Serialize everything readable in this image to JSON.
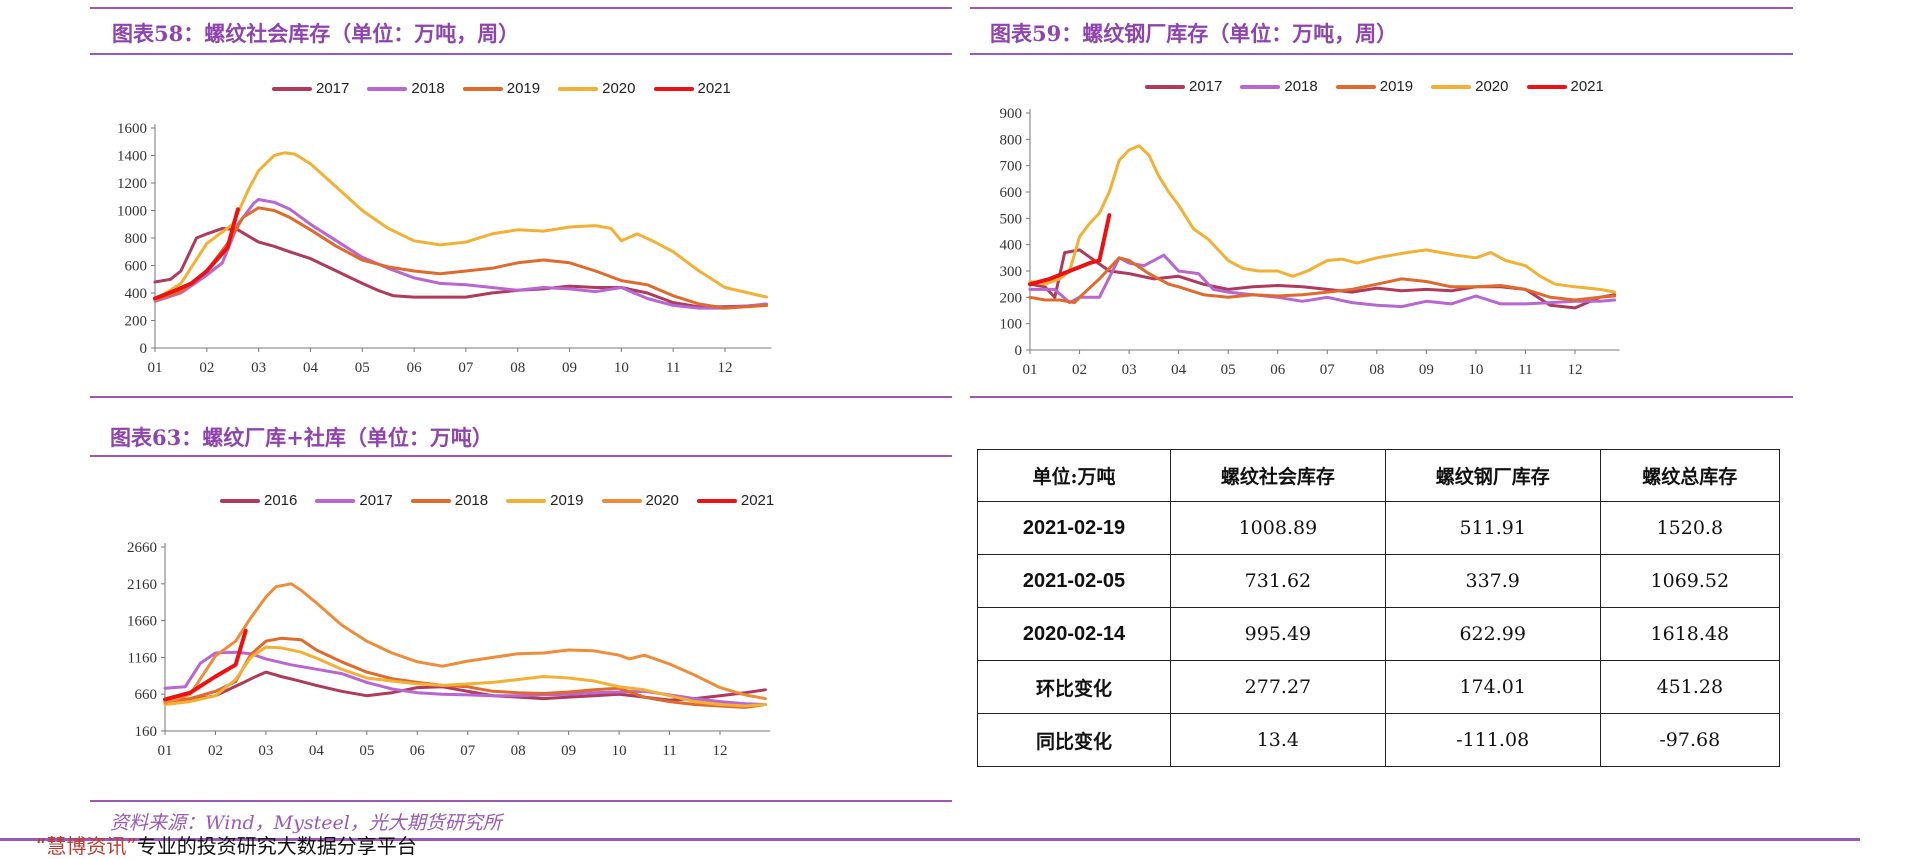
{
  "chart_data": [
    {
      "type": "line",
      "title": "图表58：螺纹社会库存（单位：万吨，周）",
      "xlabel": "",
      "ylabel": "",
      "categories": [
        "01",
        "02",
        "03",
        "04",
        "05",
        "06",
        "07",
        "08",
        "09",
        "10",
        "11",
        "12"
      ],
      "ylim": [
        0,
        1600
      ],
      "yticks": [
        0,
        200,
        400,
        600,
        800,
        1000,
        1200,
        1400,
        1600
      ],
      "grid": false,
      "legend_position": "top",
      "series": [
        {
          "name": "2017",
          "color": "#b03a5b",
          "x": [
            1,
            1.3,
            1.5,
            1.8,
            2,
            2.3,
            2.6,
            3,
            3.3,
            3.6,
            4,
            4.5,
            5,
            5.3,
            5.6,
            6,
            6.5,
            7,
            7.5,
            8,
            8.5,
            9,
            9.5,
            10,
            10.5,
            11,
            11.5,
            12,
            12.8
          ],
          "y": [
            480,
            500,
            560,
            800,
            830,
            870,
            860,
            770,
            740,
            700,
            650,
            560,
            470,
            420,
            380,
            370,
            370,
            370,
            400,
            420,
            430,
            450,
            440,
            440,
            400,
            330,
            300,
            300,
            310
          ]
        },
        {
          "name": "2018",
          "color": "#b866d1",
          "x": [
            1,
            1.5,
            2,
            2.3,
            2.6,
            2.9,
            3,
            3.3,
            3.6,
            4,
            4.5,
            5,
            5.5,
            6,
            6.5,
            7,
            7.5,
            8,
            8.5,
            9,
            9.5,
            10,
            10.5,
            11,
            11.5,
            12,
            12.8
          ],
          "y": [
            340,
            400,
            530,
            620,
            900,
            1050,
            1080,
            1060,
            1010,
            900,
            780,
            660,
            580,
            510,
            470,
            460,
            440,
            420,
            440,
            430,
            410,
            440,
            360,
            310,
            290,
            290,
            320
          ]
        },
        {
          "name": "2019",
          "color": "#e06a2c",
          "x": [
            1,
            1.5,
            2,
            2.4,
            2.7,
            3,
            3.3,
            3.6,
            4,
            4.5,
            5,
            5.5,
            6,
            6.5,
            7,
            7.5,
            8,
            8.5,
            9,
            9.5,
            10,
            10.5,
            11,
            11.5,
            12,
            12.8
          ],
          "y": [
            350,
            410,
            560,
            760,
            950,
            1020,
            1000,
            950,
            860,
            740,
            640,
            590,
            560,
            540,
            560,
            580,
            620,
            640,
            620,
            560,
            490,
            460,
            380,
            320,
            290,
            310
          ]
        },
        {
          "name": "2020",
          "color": "#f2b134",
          "x": [
            1,
            1.5,
            2,
            2.5,
            2.8,
            3,
            3.3,
            3.5,
            3.7,
            4,
            4.5,
            5,
            5.5,
            6,
            6.5,
            7,
            7.5,
            8,
            8.5,
            9,
            9.5,
            9.8,
            10,
            10.3,
            10.6,
            11,
            11.5,
            12,
            12.8
          ],
          "y": [
            350,
            470,
            760,
            900,
            1150,
            1290,
            1400,
            1420,
            1410,
            1340,
            1170,
            1000,
            870,
            780,
            750,
            770,
            830,
            860,
            850,
            880,
            890,
            870,
            780,
            830,
            780,
            700,
            560,
            440,
            370
          ]
        },
        {
          "name": "2021",
          "color": "#ee1111",
          "x": [
            1,
            1.4,
            1.7,
            2,
            2.4,
            2.6
          ],
          "y": [
            360,
            420,
            470,
            560,
            730,
            1009
          ]
        }
      ]
    },
    {
      "type": "line",
      "title": "图表59：螺纹钢厂库存（单位：万吨，周）",
      "xlabel": "",
      "ylabel": "",
      "categories": [
        "01",
        "02",
        "03",
        "04",
        "05",
        "06",
        "07",
        "08",
        "09",
        "10",
        "11",
        "12"
      ],
      "ylim": [
        0,
        900
      ],
      "yticks": [
        0,
        100,
        200,
        300,
        400,
        500,
        600,
        700,
        800,
        900
      ],
      "grid": false,
      "legend_position": "top",
      "series": [
        {
          "name": "2017",
          "color": "#b03a5b",
          "x": [
            1,
            1.3,
            1.5,
            1.7,
            2,
            2.3,
            2.6,
            3,
            3.5,
            4,
            4.5,
            5,
            5.5,
            6,
            6.5,
            7,
            7.5,
            8,
            8.5,
            9,
            9.5,
            10,
            10.5,
            11,
            11.5,
            12,
            12.5,
            12.8
          ],
          "y": [
            250,
            240,
            200,
            370,
            380,
            340,
            300,
            290,
            270,
            280,
            250,
            230,
            240,
            245,
            240,
            230,
            220,
            235,
            225,
            230,
            225,
            240,
            240,
            230,
            170,
            160,
            200,
            210
          ]
        },
        {
          "name": "2018",
          "color": "#b866d1",
          "x": [
            1,
            1.5,
            1.8,
            2,
            2.4,
            2.8,
            3,
            3.3,
            3.7,
            4,
            4.4,
            4.7,
            5,
            5.5,
            6,
            6.5,
            7,
            7.5,
            8,
            8.5,
            9,
            9.5,
            10,
            10.5,
            11,
            11.5,
            12,
            12.5,
            12.8
          ],
          "y": [
            230,
            230,
            180,
            200,
            200,
            350,
            330,
            320,
            360,
            300,
            290,
            230,
            220,
            210,
            200,
            185,
            200,
            180,
            170,
            165,
            185,
            175,
            205,
            175,
            175,
            180,
            185,
            185,
            190
          ]
        },
        {
          "name": "2019",
          "color": "#e06a2c",
          "x": [
            1,
            1.3,
            1.6,
            1.9,
            2,
            2.4,
            2.8,
            3,
            3.4,
            3.8,
            4,
            4.5,
            5,
            5.5,
            6,
            6.5,
            7,
            7.5,
            8,
            8.5,
            9,
            9.5,
            10,
            10.5,
            11,
            11.5,
            12,
            12.5,
            12.8
          ],
          "y": [
            200,
            190,
            190,
            180,
            200,
            270,
            350,
            340,
            290,
            250,
            240,
            210,
            200,
            210,
            205,
            210,
            220,
            230,
            250,
            270,
            260,
            240,
            240,
            245,
            230,
            200,
            190,
            200,
            205
          ]
        },
        {
          "name": "2020",
          "color": "#f2b134",
          "x": [
            1,
            1.3,
            1.6,
            1.8,
            2,
            2.2,
            2.4,
            2.6,
            2.8,
            3,
            3.2,
            3.4,
            3.6,
            3.8,
            4,
            4.3,
            4.6,
            5,
            5.3,
            5.6,
            6,
            6.3,
            6.6,
            7,
            7.3,
            7.6,
            8,
            8.3,
            8.6,
            9,
            9.3,
            9.6,
            10,
            10.3,
            10.6,
            11,
            11.3,
            11.6,
            12,
            12.5,
            12.8
          ],
          "y": [
            260,
            250,
            270,
            300,
            430,
            480,
            520,
            600,
            720,
            760,
            775,
            740,
            660,
            600,
            550,
            460,
            420,
            340,
            310,
            300,
            300,
            280,
            300,
            340,
            345,
            330,
            350,
            360,
            370,
            380,
            370,
            360,
            350,
            370,
            340,
            320,
            280,
            250,
            240,
            230,
            220
          ]
        },
        {
          "name": "2021",
          "color": "#ee1111",
          "x": [
            1,
            1.4,
            1.8,
            2.2,
            2.4,
            2.6
          ],
          "y": [
            250,
            270,
            300,
            330,
            340,
            512
          ]
        }
      ]
    },
    {
      "type": "line",
      "title": "图表63：螺纹厂库+社库（单位：万吨）",
      "xlabel": "",
      "ylabel": "",
      "categories": [
        "01",
        "02",
        "03",
        "04",
        "05",
        "06",
        "07",
        "08",
        "09",
        "10",
        "11",
        "12"
      ],
      "ylim": [
        160,
        2660
      ],
      "yticks": [
        160,
        660,
        1160,
        1660,
        2160,
        2660
      ],
      "grid": false,
      "legend_position": "top",
      "series": [
        {
          "name": "2016",
          "color": "#b03a5b",
          "x": [
            1,
            1.5,
            2,
            2.5,
            2.8,
            3,
            3.3,
            3.6,
            4,
            4.5,
            5,
            5.5,
            6,
            6.5,
            7,
            7.5,
            8,
            8.5,
            9,
            9.5,
            10,
            10.5,
            11,
            11.5,
            12,
            12.5,
            12.9
          ],
          "y": [
            560,
            580,
            640,
            800,
            900,
            960,
            900,
            850,
            780,
            700,
            640,
            680,
            750,
            760,
            700,
            640,
            620,
            600,
            620,
            640,
            660,
            620,
            580,
            600,
            640,
            680,
            720
          ]
        },
        {
          "name": "2017",
          "color": "#b866d1",
          "x": [
            1,
            1.4,
            1.7,
            2,
            2.4,
            2.7,
            3,
            3.5,
            4,
            4.5,
            5,
            5.5,
            6,
            6.5,
            7,
            7.5,
            8,
            8.5,
            9,
            9.5,
            10,
            10.5,
            11,
            11.5,
            12,
            12.5,
            12.9
          ],
          "y": [
            740,
            760,
            1080,
            1220,
            1230,
            1210,
            1140,
            1060,
            1000,
            940,
            820,
            730,
            680,
            660,
            650,
            640,
            640,
            650,
            660,
            680,
            690,
            700,
            650,
            600,
            560,
            530,
            520
          ]
        },
        {
          "name": "2018",
          "color": "#e06a2c",
          "x": [
            1,
            1.5,
            2,
            2.4,
            2.7,
            3,
            3.3,
            3.7,
            4,
            4.5,
            5,
            5.5,
            6,
            6.5,
            7,
            7.5,
            8,
            8.5,
            9,
            9.5,
            10,
            10.5,
            11,
            11.5,
            12,
            12.5,
            12.9
          ],
          "y": [
            560,
            600,
            700,
            830,
            1200,
            1380,
            1420,
            1400,
            1260,
            1100,
            960,
            870,
            820,
            780,
            760,
            700,
            680,
            670,
            690,
            720,
            740,
            620,
            560,
            520,
            500,
            480,
            520
          ]
        },
        {
          "name": "2019",
          "color": "#f2b134",
          "x": [
            1,
            1.5,
            2,
            2.4,
            2.7,
            3,
            3.3,
            3.7,
            4,
            4.5,
            5,
            5.5,
            6,
            6.5,
            7,
            7.5,
            8,
            8.5,
            9,
            9.5,
            10,
            10.5,
            11,
            11.5,
            12,
            12.5,
            12.9
          ],
          "y": [
            520,
            560,
            640,
            860,
            1160,
            1300,
            1290,
            1230,
            1150,
            1000,
            880,
            840,
            800,
            780,
            800,
            820,
            860,
            900,
            880,
            840,
            760,
            720,
            640,
            560,
            520,
            500,
            520
          ]
        },
        {
          "name": "2020",
          "color": "#ef8c3a",
          "x": [
            1,
            1.5,
            2,
            2.4,
            2.7,
            3,
            3.2,
            3.5,
            3.7,
            4,
            4.5,
            5,
            5.5,
            6,
            6.5,
            7,
            7.5,
            8,
            8.5,
            9,
            9.5,
            10,
            10.2,
            10.5,
            11,
            11.5,
            12,
            12.5,
            12.9
          ],
          "y": [
            540,
            660,
            1180,
            1380,
            1700,
            1980,
            2120,
            2160,
            2070,
            1900,
            1600,
            1380,
            1220,
            1100,
            1040,
            1110,
            1160,
            1210,
            1220,
            1260,
            1250,
            1190,
            1140,
            1190,
            1070,
            920,
            750,
            650,
            600
          ]
        },
        {
          "name": "2021",
          "color": "#ee1111",
          "x": [
            1,
            1.5,
            2,
            2.4,
            2.6
          ],
          "y": [
            590,
            680,
            900,
            1060,
            1521
          ]
        }
      ]
    }
  ],
  "table": {
    "headers": [
      "单位:万吨",
      "螺纹社会库存",
      "螺纹钢厂库存",
      "螺纹总库存"
    ],
    "rows": [
      [
        "2021-02-19",
        "1008.89",
        "511.91",
        "1520.8"
      ],
      [
        "2021-02-05",
        "731.62",
        "337.9",
        "1069.52"
      ],
      [
        "2020-02-14",
        "995.49",
        "622.99",
        "1618.48"
      ],
      [
        "环比变化",
        "277.27",
        "174.01",
        "451.28"
      ],
      [
        "同比变化",
        "13.4",
        "-111.08",
        "-97.68"
      ]
    ]
  },
  "source": "资料来源：Wind，Mysteel，光大期货研究所",
  "footer": {
    "brand": "“慧博资讯”",
    "text": "专业的投资研究大数据分享平台"
  }
}
